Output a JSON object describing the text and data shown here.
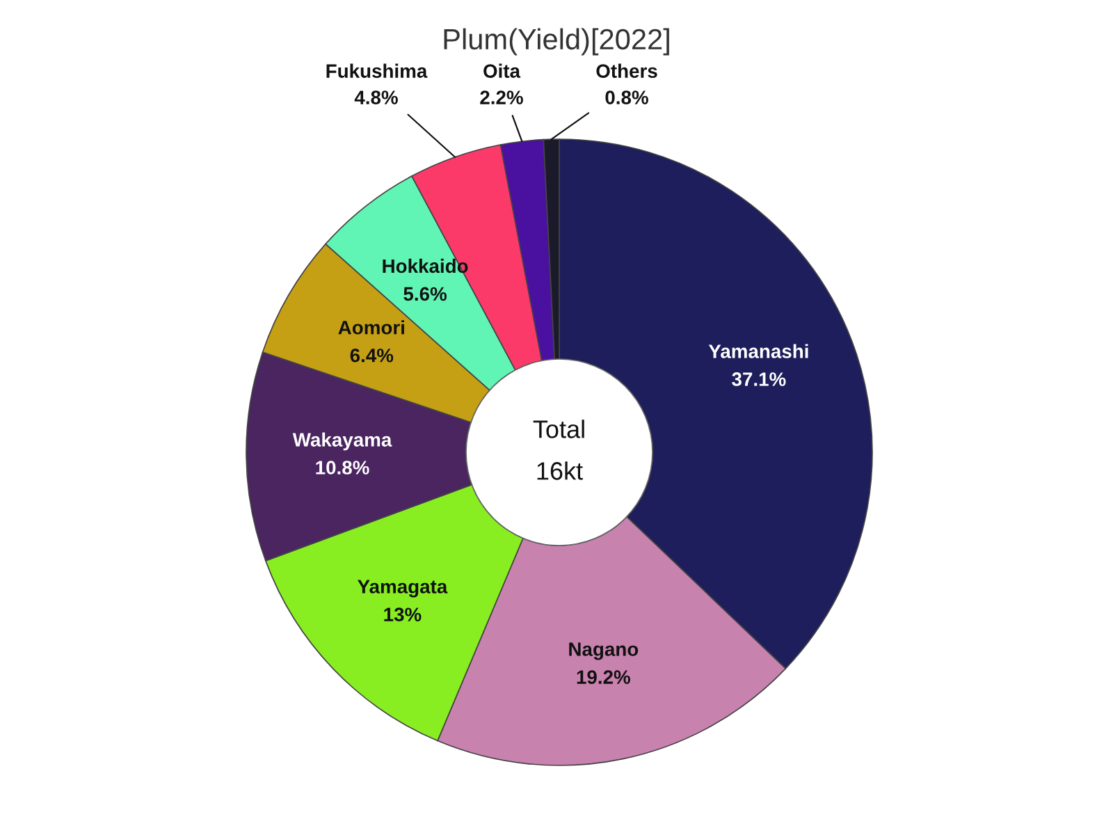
{
  "chart_data": {
    "type": "donut",
    "title": "Plum(Yield)[2022]",
    "categories": [
      "Yamanashi",
      "Nagano",
      "Yamagata",
      "Wakayama",
      "Aomori",
      "Hokkaido",
      "Fukushima",
      "Oita",
      "Others"
    ],
    "values": [
      37.1,
      19.2,
      13,
      10.8,
      6.4,
      5.6,
      4.8,
      2.2,
      0.8
    ],
    "value_labels": [
      "37.1%",
      "19.2%",
      "13%",
      "10.8%",
      "6.4%",
      "5.6%",
      "4.8%",
      "2.2%",
      "0.8%"
    ],
    "colors": [
      "#1e1e5c",
      "#c882ae",
      "#88ee22",
      "#4a2560",
      "#c5a015",
      "#60f5b5",
      "#fc3a6a",
      "#4a10a0",
      "#1a1a2a"
    ],
    "annotations": [
      "Total",
      "16kt"
    ]
  }
}
